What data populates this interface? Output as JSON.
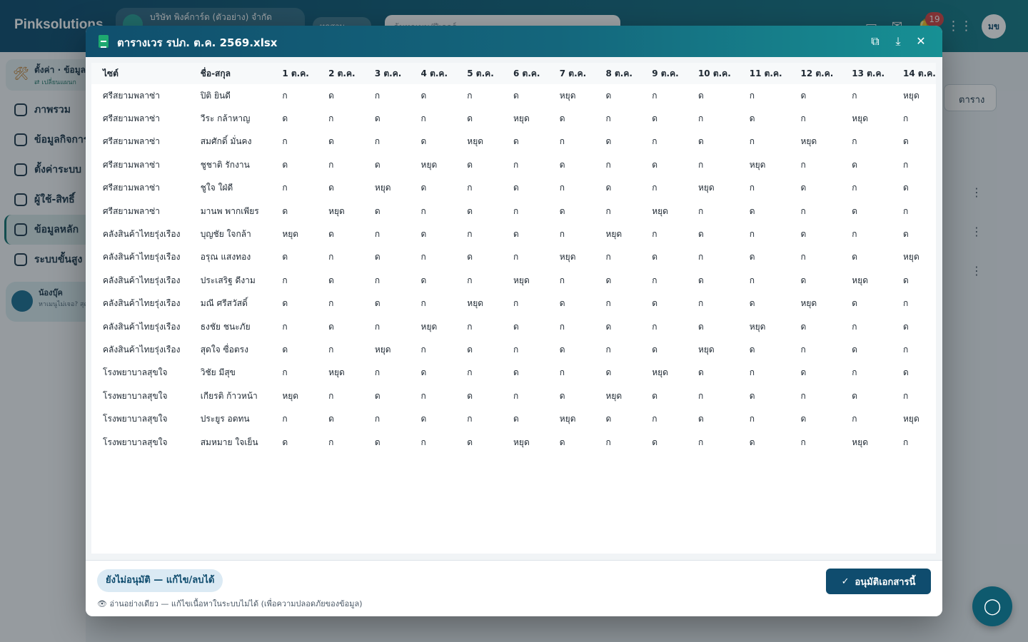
{
  "app": {
    "brand": "Pinksolutions",
    "company_name": "บริษัท พิงค์การ์ด (ตัวอย่าง) จำกัด",
    "plan_label": "ทดสอบ",
    "search_placeholder": "ค้นหาเมนู/ฟีเจอร์",
    "notification_count": "19",
    "user_initials": "มข",
    "settings_card": {
      "title": "ตั้งค่า · ข้อมูล",
      "subtitle": "⇄ เปลี่ยนแผนก"
    },
    "nav": [
      {
        "label": "ภาพรวม",
        "icon": "home-icon"
      },
      {
        "label": "ข้อมูลกิจการ",
        "icon": "building-icon"
      },
      {
        "label": "ตั้งค่าระบบ",
        "icon": "gear-icon"
      },
      {
        "label": "ผู้ใช้-สิทธิ์",
        "icon": "users-icon"
      },
      {
        "label": "ข้อมูลหลัก",
        "icon": "wrench-icon",
        "active": true
      },
      {
        "label": "ระบบขั้นสูง",
        "icon": "gear-icon"
      }
    ],
    "helper_card": {
      "title": "น้องบุ๊ค",
      "subtitle": "หาเมนูไม่เจอ? สุด"
    },
    "view_toggle_label": "ตาราง"
  },
  "modal": {
    "title": "ตารางเวร รปภ. ต.ค. 2569.xlsx",
    "actions": {
      "open_new_tab": "open-external-icon",
      "download": "download-icon",
      "close": "close-icon"
    },
    "status_label": "ยังไม่อนุมัติ — แก้ไข/ลบได้",
    "readonly_note": "👁 อ่านอย่างเดียว — แก้ไขเนื้อหาในระบบไม่ได้ (เพื่อความปลอดภัยของข้อมูล)",
    "approve_label": "อนุมัติเอกสารนี้"
  },
  "sheet": {
    "columns": [
      "ไซต์",
      "ชื่อ-สกุล",
      "1 ต.ค.",
      "2 ต.ค.",
      "3 ต.ค.",
      "4 ต.ค.",
      "5 ต.ค.",
      "6 ต.ค.",
      "7 ต.ค.",
      "8 ต.ค.",
      "9 ต.ค.",
      "10 ต.ค.",
      "11 ต.ค.",
      "12 ต.ค.",
      "13 ต.ค.",
      "14 ต.ค."
    ],
    "rows": [
      [
        "ศรีสยามพลาซ่า",
        "ปิติ ยินดี",
        "ก",
        "ด",
        "ก",
        "ด",
        "ก",
        "ด",
        "หยุด",
        "ด",
        "ก",
        "ด",
        "ก",
        "ด",
        "ก",
        "หยุด"
      ],
      [
        "ศรีสยามพลาซ่า",
        "วีระ กล้าหาญ",
        "ด",
        "ก",
        "ด",
        "ก",
        "ด",
        "หยุด",
        "ด",
        "ก",
        "ด",
        "ก",
        "ด",
        "ก",
        "หยุด",
        "ก"
      ],
      [
        "ศรีสยามพลาซ่า",
        "สมศักดิ์ มั่นคง",
        "ก",
        "ด",
        "ก",
        "ด",
        "หยุด",
        "ด",
        "ก",
        "ด",
        "ก",
        "ด",
        "ก",
        "หยุด",
        "ก",
        "ด"
      ],
      [
        "ศรีสยามพลาซ่า",
        "ชูชาติ รักงาน",
        "ด",
        "ก",
        "ด",
        "หยุด",
        "ด",
        "ก",
        "ด",
        "ก",
        "ด",
        "ก",
        "หยุด",
        "ก",
        "ด",
        "ก"
      ],
      [
        "ศรีสยามพลาซ่า",
        "ชูใจ ใฝ่ดี",
        "ก",
        "ด",
        "หยุด",
        "ด",
        "ก",
        "ด",
        "ก",
        "ด",
        "ก",
        "หยุด",
        "ก",
        "ด",
        "ก",
        "ด"
      ],
      [
        "ศรีสยามพลาซ่า",
        "มานพ พากเพียร",
        "ด",
        "หยุด",
        "ด",
        "ก",
        "ด",
        "ก",
        "ด",
        "ก",
        "หยุด",
        "ก",
        "ด",
        "ก",
        "ด",
        "ก"
      ],
      [
        "คลังสินค้าไทยรุ่งเรือง",
        "บุญชัย ใจกล้า",
        "หยุด",
        "ด",
        "ก",
        "ด",
        "ก",
        "ด",
        "ก",
        "หยุด",
        "ก",
        "ด",
        "ก",
        "ด",
        "ก",
        "ด"
      ],
      [
        "คลังสินค้าไทยรุ่งเรือง",
        "อรุณ แสงทอง",
        "ด",
        "ก",
        "ด",
        "ก",
        "ด",
        "ก",
        "หยุด",
        "ก",
        "ด",
        "ก",
        "ด",
        "ก",
        "ด",
        "หยุด"
      ],
      [
        "คลังสินค้าไทยรุ่งเรือง",
        "ประเสริฐ ดีงาม",
        "ก",
        "ด",
        "ก",
        "ด",
        "ก",
        "หยุด",
        "ก",
        "ด",
        "ก",
        "ด",
        "ก",
        "ด",
        "หยุด",
        "ด"
      ],
      [
        "คลังสินค้าไทยรุ่งเรือง",
        "มณี ศรีสวัสดิ์",
        "ด",
        "ก",
        "ด",
        "ก",
        "หยุด",
        "ก",
        "ด",
        "ก",
        "ด",
        "ก",
        "ด",
        "หยุด",
        "ด",
        "ก"
      ],
      [
        "คลังสินค้าไทยรุ่งเรือง",
        "ธงชัย ชนะภัย",
        "ก",
        "ด",
        "ก",
        "หยุด",
        "ก",
        "ด",
        "ก",
        "ด",
        "ก",
        "ด",
        "หยุด",
        "ด",
        "ก",
        "ด"
      ],
      [
        "คลังสินค้าไทยรุ่งเรือง",
        "สุดใจ ซื่อตรง",
        "ด",
        "ก",
        "หยุด",
        "ก",
        "ด",
        "ก",
        "ด",
        "ก",
        "ด",
        "หยุด",
        "ด",
        "ก",
        "ด",
        "ก"
      ],
      [
        "โรงพยาบาลสุขใจ",
        "วิชัย มีสุข",
        "ก",
        "หยุด",
        "ก",
        "ด",
        "ก",
        "ด",
        "ก",
        "ด",
        "หยุด",
        "ด",
        "ก",
        "ด",
        "ก",
        "ด"
      ],
      [
        "โรงพยาบาลสุขใจ",
        "เกียรติ ก้าวหน้า",
        "หยุด",
        "ก",
        "ด",
        "ก",
        "ด",
        "ก",
        "ด",
        "หยุด",
        "ด",
        "ก",
        "ด",
        "ก",
        "ด",
        "ก"
      ],
      [
        "โรงพยาบาลสุขใจ",
        "ประยูร อดทน",
        "ก",
        "ด",
        "ก",
        "ด",
        "ก",
        "ด",
        "หยุด",
        "ด",
        "ก",
        "ด",
        "ก",
        "ด",
        "ก",
        "หยุด"
      ],
      [
        "โรงพยาบาลสุขใจ",
        "สมหมาย ใจเย็น",
        "ด",
        "ก",
        "ด",
        "ก",
        "ด",
        "หยุด",
        "ด",
        "ก",
        "ด",
        "ก",
        "ด",
        "ก",
        "หยุด",
        "ก"
      ]
    ]
  }
}
